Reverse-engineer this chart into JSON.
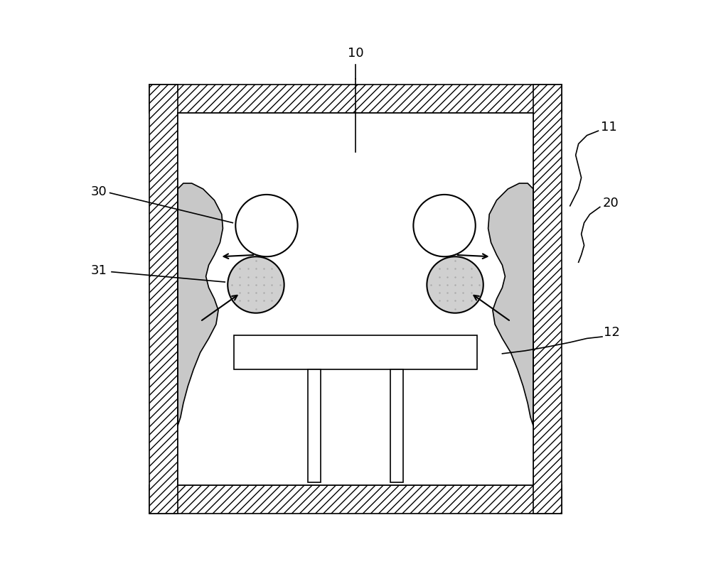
{
  "fig_width": 10.0,
  "fig_height": 7.94,
  "bg_color": "#ffffff",
  "label_10": "10",
  "label_11": "11",
  "label_12": "12",
  "label_20": "20",
  "label_30": "30",
  "label_31": "31",
  "font_size": 13,
  "ox": 0.135,
  "oy": 0.09,
  "ow": 0.73,
  "oh": 0.76,
  "wt": 0.05
}
